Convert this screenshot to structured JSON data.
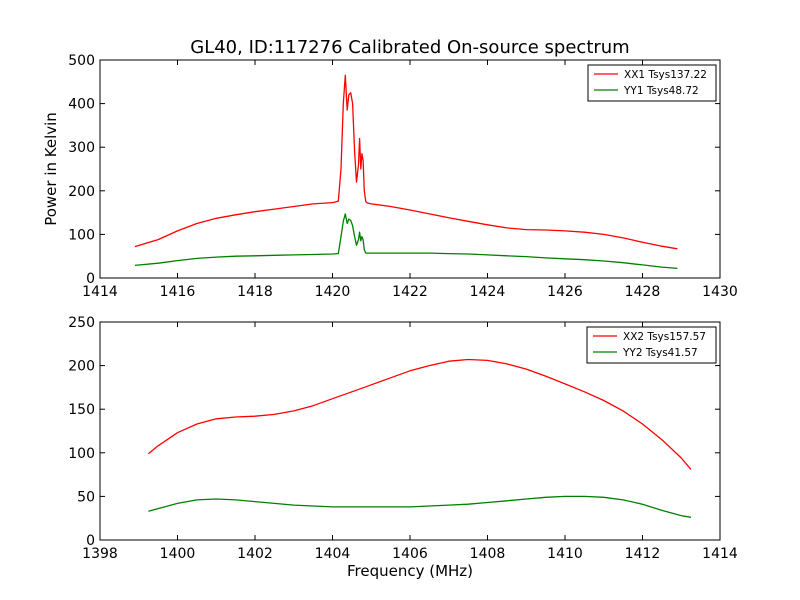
{
  "chart_data": [
    {
      "type": "line",
      "title": "GL40, ID:117276 Calibrated On-source spectrum",
      "xlabel": "",
      "ylabel": "Power in Kelvin",
      "xlim": [
        1414,
        1430
      ],
      "ylim": [
        0,
        500
      ],
      "xticks": [
        1414,
        1416,
        1418,
        1420,
        1422,
        1424,
        1426,
        1428,
        1430
      ],
      "yticks": [
        0,
        100,
        200,
        300,
        400,
        500
      ],
      "grid": false,
      "legend": "top-right",
      "series": [
        {
          "name": "XX1 Tsys137.22",
          "color": "#ff0000",
          "x": [
            1414.9,
            1415.5,
            1416.0,
            1416.5,
            1417.0,
            1417.5,
            1418.0,
            1418.5,
            1419.0,
            1419.5,
            1420.0,
            1420.15,
            1420.22,
            1420.28,
            1420.33,
            1420.38,
            1420.42,
            1420.47,
            1420.52,
            1420.57,
            1420.62,
            1420.67,
            1420.7,
            1420.73,
            1420.76,
            1420.79,
            1420.82,
            1420.86,
            1420.9,
            1421.0,
            1421.5,
            1422.0,
            1422.5,
            1423.0,
            1423.5,
            1424.0,
            1424.5,
            1425.0,
            1425.5,
            1426.0,
            1426.5,
            1427.0,
            1427.5,
            1428.0,
            1428.5,
            1428.9
          ],
          "y": [
            72,
            88,
            108,
            125,
            137,
            145,
            152,
            158,
            164,
            170,
            173,
            176,
            250,
            400,
            465,
            385,
            420,
            425,
            400,
            290,
            220,
            260,
            320,
            250,
            285,
            270,
            200,
            175,
            172,
            170,
            164,
            156,
            147,
            138,
            130,
            122,
            115,
            111,
            110,
            108,
            105,
            100,
            92,
            82,
            73,
            67
          ]
        },
        {
          "name": "YY1 Tsys48.72",
          "color": "#008000",
          "x": [
            1414.9,
            1415.5,
            1416.0,
            1416.5,
            1417.0,
            1417.5,
            1418.0,
            1418.5,
            1419.0,
            1419.5,
            1420.0,
            1420.15,
            1420.22,
            1420.28,
            1420.33,
            1420.38,
            1420.42,
            1420.47,
            1420.52,
            1420.57,
            1420.62,
            1420.67,
            1420.7,
            1420.73,
            1420.76,
            1420.79,
            1420.82,
            1420.86,
            1420.9,
            1421.0,
            1421.5,
            1422.0,
            1422.5,
            1423.0,
            1423.5,
            1424.0,
            1424.5,
            1425.0,
            1425.5,
            1426.0,
            1426.5,
            1427.0,
            1427.5,
            1428.0,
            1428.5,
            1428.9
          ],
          "y": [
            29,
            34,
            40,
            45,
            48,
            50,
            51,
            52,
            53,
            54,
            55,
            56,
            95,
            130,
            147,
            125,
            135,
            132,
            120,
            95,
            75,
            88,
            105,
            85,
            95,
            88,
            65,
            57,
            57,
            57,
            57,
            57,
            57,
            56,
            55,
            53,
            51,
            49,
            46,
            44,
            42,
            39,
            35,
            30,
            25,
            22
          ]
        }
      ]
    },
    {
      "type": "line",
      "title": "",
      "xlabel": "Frequency (MHz)",
      "ylabel": "",
      "xlim": [
        1398,
        1414
      ],
      "ylim": [
        0,
        250
      ],
      "xticks": [
        1398,
        1400,
        1402,
        1404,
        1406,
        1408,
        1410,
        1412,
        1414
      ],
      "yticks": [
        0,
        50,
        100,
        150,
        200,
        250
      ],
      "grid": false,
      "legend": "top-right",
      "series": [
        {
          "name": "XX2 Tsys157.57",
          "color": "#ff0000",
          "x": [
            1399.25,
            1399.5,
            1400.0,
            1400.5,
            1401.0,
            1401.5,
            1402.0,
            1402.5,
            1403.0,
            1403.5,
            1404.0,
            1404.5,
            1405.0,
            1405.5,
            1406.0,
            1406.5,
            1407.0,
            1407.5,
            1408.0,
            1408.5,
            1409.0,
            1409.5,
            1410.0,
            1410.5,
            1411.0,
            1411.5,
            1412.0,
            1412.5,
            1413.0,
            1413.25
          ],
          "y": [
            99,
            108,
            123,
            133,
            139,
            141,
            142,
            144,
            148,
            154,
            162,
            170,
            178,
            186,
            194,
            200,
            205,
            207,
            206,
            202,
            196,
            188,
            179,
            170,
            160,
            148,
            133,
            115,
            94,
            81
          ]
        },
        {
          "name": "YY2 Tsys41.57",
          "color": "#008000",
          "x": [
            1399.25,
            1399.5,
            1400.0,
            1400.5,
            1401.0,
            1401.5,
            1402.0,
            1402.5,
            1403.0,
            1403.5,
            1404.0,
            1404.5,
            1405.0,
            1405.5,
            1406.0,
            1406.5,
            1407.0,
            1407.5,
            1408.0,
            1408.5,
            1409.0,
            1409.5,
            1410.0,
            1410.5,
            1411.0,
            1411.5,
            1412.0,
            1412.5,
            1413.0,
            1413.25
          ],
          "y": [
            33,
            36,
            42,
            46,
            47,
            46,
            44,
            42,
            40,
            39,
            38,
            38,
            38,
            38,
            38,
            39,
            40,
            41,
            43,
            45,
            47,
            49,
            50,
            50,
            49,
            46,
            41,
            34,
            28,
            26
          ]
        }
      ]
    }
  ]
}
